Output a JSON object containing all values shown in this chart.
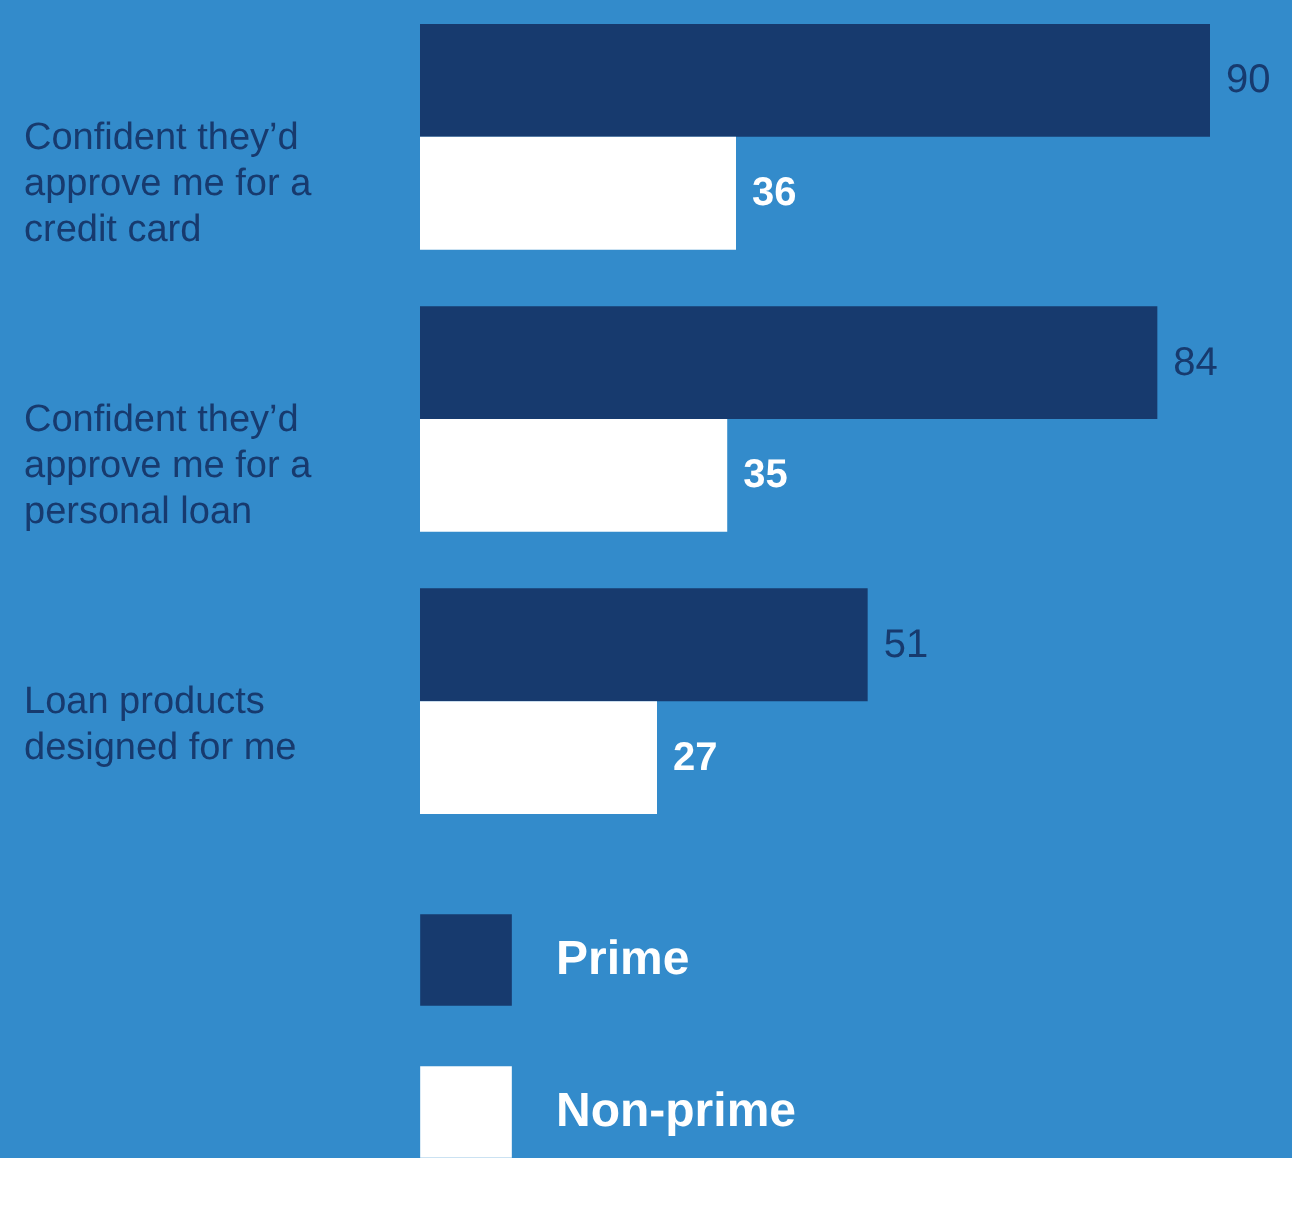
{
  "chart_data": {
    "type": "bar",
    "orientation": "horizontal",
    "categories": [
      "Confident they’d approve me for a credit card",
      "Confident they’d approve me for a personal loan",
      "Loan products designed for me"
    ],
    "series": [
      {
        "name": "Prime",
        "color": "#173a6e",
        "values": [
          90,
          84,
          51
        ]
      },
      {
        "name": "Non-prime",
        "color": "#ffffff",
        "values": [
          36,
          35,
          27
        ]
      }
    ],
    "data_labels": true,
    "tick_labels": "y",
    "legend": "bottom"
  }
}
